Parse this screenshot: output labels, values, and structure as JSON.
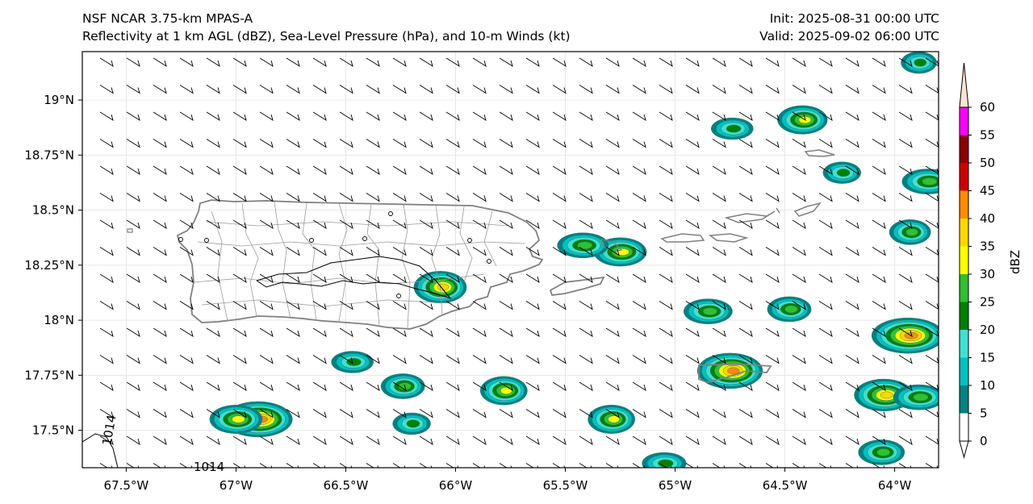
{
  "header": {
    "model": "NSF NCAR 3.75-km MPAS-A",
    "fields": "Reflectivity at 1 km AGL (dBZ), Sea-Level Pressure (hPa), and 10-m Winds (kt)",
    "init": "Init: 2025-08-31 00:00 UTC",
    "valid": "Valid: 2025-09-02 06:00 UTC"
  },
  "map": {
    "lon_range": [
      -67.7,
      -63.8
    ],
    "lat_range": [
      17.33,
      19.22
    ],
    "x_ticks": [
      {
        "lon": -67.5,
        "label": "67.5°W"
      },
      {
        "lon": -67.0,
        "label": "67°W"
      },
      {
        "lon": -66.5,
        "label": "66.5°W"
      },
      {
        "lon": -66.0,
        "label": "66°W"
      },
      {
        "lon": -65.5,
        "label": "65.5°W"
      },
      {
        "lon": -65.0,
        "label": "65°W"
      },
      {
        "lon": -64.5,
        "label": "64.5°W"
      },
      {
        "lon": -64.0,
        "label": "64°W"
      }
    ],
    "y_ticks": [
      {
        "lat": 19.0,
        "label": "19°N"
      },
      {
        "lat": 18.75,
        "label": "18.75°N"
      },
      {
        "lat": 18.5,
        "label": "18.5°N"
      },
      {
        "lat": 18.25,
        "label": "18.25°N"
      },
      {
        "lat": 18.0,
        "label": "18°N"
      },
      {
        "lat": 17.75,
        "label": "17.75°N"
      },
      {
        "lat": 17.5,
        "label": "17.5°N"
      }
    ],
    "isobar_labels": [
      "1014",
      "1014"
    ],
    "grid": true
  },
  "colorbar": {
    "label": "dBZ",
    "levels": [
      "0",
      "5",
      "10",
      "15",
      "20",
      "25",
      "30",
      "35",
      "40",
      "45",
      "50",
      "55",
      "60"
    ],
    "colors": [
      "#ffffff",
      "#008080",
      "#00c0c0",
      "#40e0d0",
      "#008000",
      "#30c030",
      "#ffff00",
      "#ffd700",
      "#ff8c00",
      "#cc0000",
      "#8b0000",
      "#ff00ff",
      "#ffe4d6"
    ]
  },
  "echoes": [
    {
      "lon": -66.07,
      "lat": 18.15,
      "max_dbz": 40
    },
    {
      "lon": -65.25,
      "lat": 18.31,
      "max_dbz": 35
    },
    {
      "lon": -65.42,
      "lat": 18.34,
      "max_dbz": 30
    },
    {
      "lon": -64.42,
      "lat": 18.91,
      "max_dbz": 35
    },
    {
      "lon": -66.9,
      "lat": 17.55,
      "max_dbz": 45
    },
    {
      "lon": -65.78,
      "lat": 17.68,
      "max_dbz": 35
    },
    {
      "lon": -64.75,
      "lat": 17.77,
      "max_dbz": 45
    },
    {
      "lon": -63.94,
      "lat": 17.93,
      "max_dbz": 45
    },
    {
      "lon": -66.24,
      "lat": 17.7,
      "max_dbz": 30
    },
    {
      "lon": -66.47,
      "lat": 17.81,
      "max_dbz": 25
    },
    {
      "lon": -65.29,
      "lat": 17.55,
      "max_dbz": 35
    },
    {
      "lon": -64.05,
      "lat": 17.66,
      "max_dbz": 40
    },
    {
      "lon": -63.89,
      "lat": 17.65,
      "max_dbz": 30
    },
    {
      "lon": -64.48,
      "lat": 18.05,
      "max_dbz": 30
    },
    {
      "lon": -64.85,
      "lat": 18.04,
      "max_dbz": 30
    },
    {
      "lon": -63.93,
      "lat": 18.4,
      "max_dbz": 30
    },
    {
      "lon": -64.06,
      "lat": 17.4,
      "max_dbz": 30
    },
    {
      "lon": -63.85,
      "lat": 18.63,
      "max_dbz": 30
    },
    {
      "lon": -64.24,
      "lat": 18.67,
      "max_dbz": 25
    },
    {
      "lon": -64.74,
      "lat": 18.87,
      "max_dbz": 25
    },
    {
      "lon": -63.89,
      "lat": 19.17,
      "max_dbz": 25
    },
    {
      "lon": -67.0,
      "lat": 17.55,
      "max_dbz": 35
    },
    {
      "lon": -65.05,
      "lat": 17.35,
      "max_dbz": 25
    },
    {
      "lon": -66.2,
      "lat": 17.53,
      "max_dbz": 25
    }
  ]
}
